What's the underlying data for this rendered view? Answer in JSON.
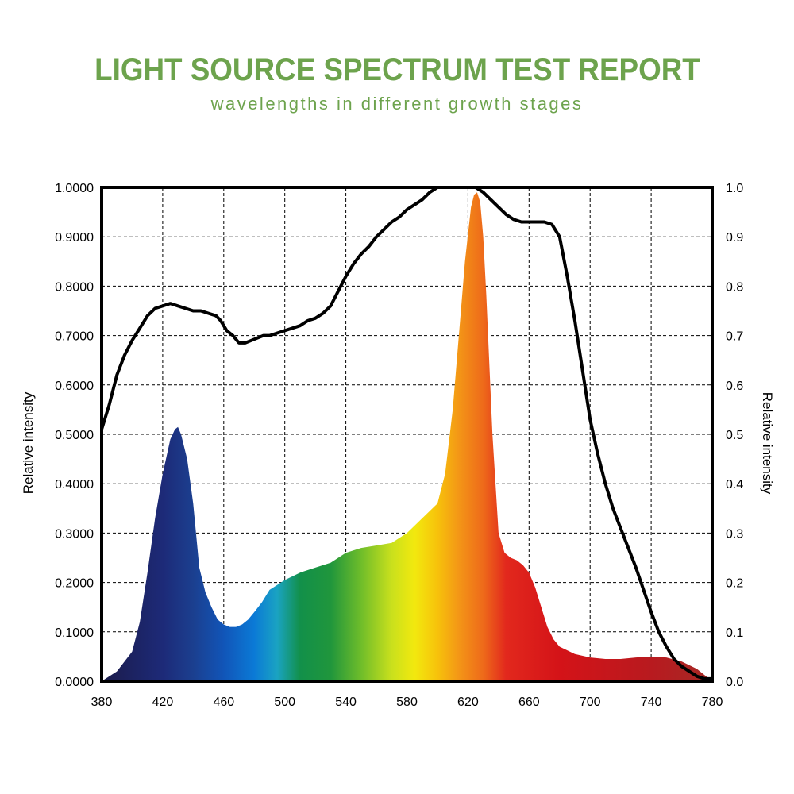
{
  "header": {
    "title": "LIGHT SOURCE SPECTRUM TEST REPORT",
    "subtitle": "wavelengths in different growth stages",
    "accent_color": "#6da34d"
  },
  "chart_data": {
    "type": "area",
    "xlim": [
      380,
      780
    ],
    "ylim": [
      0,
      1
    ],
    "x_ticks": [
      "380",
      "420",
      "460",
      "500",
      "540",
      "580",
      "620",
      "660",
      "700",
      "740",
      "780"
    ],
    "y_ticks_left": [
      "0.0000",
      "0.1000",
      "0.2000",
      "0.3000",
      "0.4000",
      "0.5000",
      "0.6000",
      "0.7000",
      "0.8000",
      "0.9000",
      "1.0000"
    ],
    "y_ticks_right": [
      "0.0",
      "0.1",
      "0.2",
      "0.3",
      "0.4",
      "0.5",
      "0.6",
      "0.7",
      "0.8",
      "0.9",
      "1.0"
    ],
    "ylabel_left": "Relative intensity",
    "ylabel_right": "Relative intensity",
    "grid": true,
    "series": [
      {
        "style": "spectrum-filled-area",
        "x": [
          380,
          390,
          400,
          405,
          410,
          415,
          420,
          425,
          428,
          430,
          432,
          436,
          440,
          444,
          448,
          452,
          456,
          460,
          464,
          468,
          472,
          476,
          480,
          485,
          490,
          495,
          500,
          510,
          520,
          530,
          535,
          540,
          550,
          560,
          570,
          580,
          590,
          600,
          605,
          610,
          614,
          618,
          622,
          624,
          626,
          628,
          630,
          632,
          636,
          640,
          644,
          648,
          652,
          656,
          660,
          664,
          668,
          672,
          676,
          680,
          690,
          700,
          710,
          720,
          730,
          740,
          750,
          760,
          770,
          780
        ],
        "values": [
          0.0,
          0.02,
          0.06,
          0.12,
          0.22,
          0.33,
          0.42,
          0.49,
          0.51,
          0.515,
          0.5,
          0.45,
          0.36,
          0.23,
          0.18,
          0.15,
          0.125,
          0.115,
          0.11,
          0.11,
          0.115,
          0.125,
          0.14,
          0.16,
          0.185,
          0.195,
          0.205,
          0.22,
          0.23,
          0.24,
          0.25,
          0.26,
          0.27,
          0.275,
          0.28,
          0.3,
          0.33,
          0.36,
          0.42,
          0.55,
          0.7,
          0.85,
          0.96,
          0.985,
          0.99,
          0.97,
          0.9,
          0.78,
          0.5,
          0.3,
          0.26,
          0.25,
          0.245,
          0.235,
          0.22,
          0.19,
          0.15,
          0.11,
          0.085,
          0.07,
          0.055,
          0.048,
          0.045,
          0.045,
          0.048,
          0.05,
          0.048,
          0.04,
          0.025,
          0.0
        ]
      },
      {
        "style": "black-line",
        "x": [
          380,
          385,
          390,
          395,
          400,
          405,
          410,
          415,
          420,
          425,
          430,
          435,
          440,
          445,
          450,
          455,
          458,
          462,
          466,
          470,
          474,
          478,
          482,
          486,
          490,
          495,
          500,
          505,
          510,
          515,
          520,
          525,
          530,
          535,
          540,
          545,
          550,
          555,
          560,
          565,
          570,
          575,
          580,
          585,
          590,
          595,
          600,
          605,
          610,
          615,
          620,
          625,
          630,
          635,
          640,
          645,
          650,
          655,
          660,
          665,
          670,
          675,
          680,
          685,
          690,
          695,
          700,
          705,
          710,
          715,
          720,
          725,
          730,
          735,
          740,
          745,
          750,
          755,
          760,
          765,
          770,
          775,
          780
        ],
        "values": [
          0.51,
          0.56,
          0.62,
          0.66,
          0.69,
          0.715,
          0.74,
          0.755,
          0.76,
          0.765,
          0.76,
          0.755,
          0.75,
          0.75,
          0.745,
          0.74,
          0.73,
          0.71,
          0.7,
          0.685,
          0.685,
          0.69,
          0.695,
          0.7,
          0.7,
          0.705,
          0.71,
          0.715,
          0.72,
          0.73,
          0.735,
          0.745,
          0.76,
          0.79,
          0.82,
          0.845,
          0.865,
          0.88,
          0.9,
          0.915,
          0.93,
          0.94,
          0.955,
          0.965,
          0.975,
          0.99,
          1.0,
          1.0,
          1.0,
          1.0,
          1.0,
          1.0,
          0.99,
          0.975,
          0.96,
          0.945,
          0.935,
          0.93,
          0.93,
          0.93,
          0.93,
          0.925,
          0.9,
          0.82,
          0.73,
          0.63,
          0.53,
          0.46,
          0.4,
          0.35,
          0.31,
          0.27,
          0.23,
          0.185,
          0.14,
          0.1,
          0.07,
          0.045,
          0.03,
          0.02,
          0.01,
          0.005,
          0.005
        ]
      }
    ],
    "spectrum_colors": [
      {
        "x": 380,
        "color": "#1b1b4a"
      },
      {
        "x": 420,
        "color": "#1d2a78"
      },
      {
        "x": 440,
        "color": "#1b3f8f"
      },
      {
        "x": 460,
        "color": "#1155b8"
      },
      {
        "x": 480,
        "color": "#0b7ad6"
      },
      {
        "x": 495,
        "color": "#1aa3c2"
      },
      {
        "x": 510,
        "color": "#12904a"
      },
      {
        "x": 530,
        "color": "#20963c"
      },
      {
        "x": 550,
        "color": "#6fbd2a"
      },
      {
        "x": 570,
        "color": "#c9e01d"
      },
      {
        "x": 585,
        "color": "#f2e90e"
      },
      {
        "x": 600,
        "color": "#f7c20b"
      },
      {
        "x": 615,
        "color": "#f39317"
      },
      {
        "x": 630,
        "color": "#ee6a1a"
      },
      {
        "x": 645,
        "color": "#e2281d"
      },
      {
        "x": 680,
        "color": "#d41318"
      },
      {
        "x": 740,
        "color": "#b81a1f"
      },
      {
        "x": 780,
        "color": "#a52a26"
      }
    ]
  }
}
